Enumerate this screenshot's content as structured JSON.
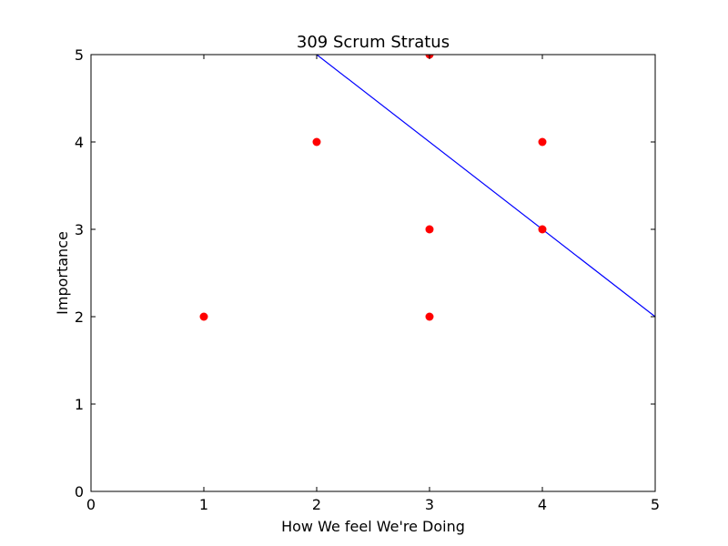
{
  "chart_data": {
    "type": "scatter",
    "title": "309 Scrum Stratus",
    "xlabel": "How We feel We're Doing",
    "ylabel": "Importance",
    "xlim": [
      0,
      5
    ],
    "ylim": [
      0,
      5
    ],
    "xticks": [
      "0",
      "1",
      "2",
      "3",
      "4",
      "5"
    ],
    "yticks": [
      "0",
      "1",
      "2",
      "3",
      "4",
      "5"
    ],
    "grid": false,
    "points": [
      {
        "x": 1,
        "y": 2
      },
      {
        "x": 2,
        "y": 4
      },
      {
        "x": 3,
        "y": 5
      },
      {
        "x": 3,
        "y": 3
      },
      {
        "x": 3,
        "y": 2
      },
      {
        "x": 4,
        "y": 4
      },
      {
        "x": 4,
        "y": 3
      }
    ],
    "line": {
      "x": [
        2,
        5
      ],
      "y": [
        5,
        2
      ]
    },
    "point_color": "#ff0000",
    "line_color": "#0000ff"
  }
}
